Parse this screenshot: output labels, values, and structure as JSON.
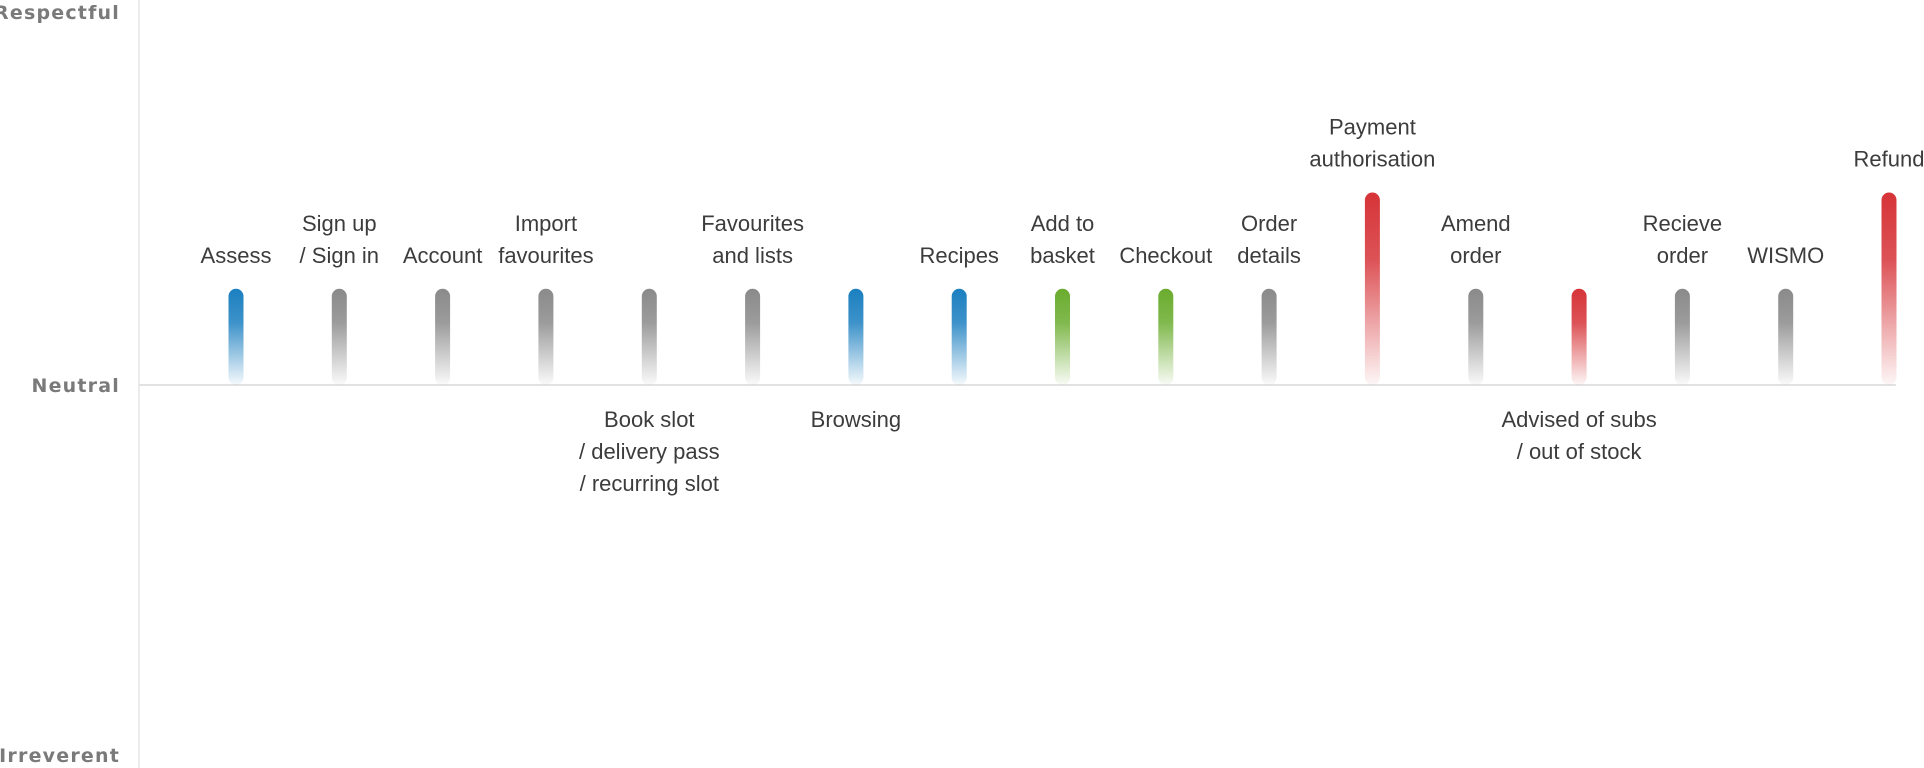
{
  "chart_data": {
    "type": "bar",
    "y_scale": {
      "top_label": "Respectful",
      "middle_label": "Neutral",
      "bottom_label": "Irreverent",
      "range": [
        -1,
        1
      ]
    },
    "grid": false,
    "legend": "none",
    "colors": {
      "blue": "#1b7fc0",
      "grey": "#8a8a8a",
      "green": "#6aac2e",
      "red": "#d63438",
      "axis": "#e2e2e2"
    },
    "categories": [
      {
        "lines": [
          "Assess"
        ],
        "value": 0.25,
        "color": "blue",
        "label_side": "above"
      },
      {
        "lines": [
          "Sign up",
          "/ Sign in"
        ],
        "value": 0.25,
        "color": "grey",
        "label_side": "above"
      },
      {
        "lines": [
          "Account"
        ],
        "value": 0.25,
        "color": "grey",
        "label_side": "above"
      },
      {
        "lines": [
          "Import",
          "favourites"
        ],
        "value": 0.25,
        "color": "grey",
        "label_side": "above"
      },
      {
        "lines": [
          "Book slot",
          "/ delivery pass",
          "/ recurring slot"
        ],
        "value": 0.25,
        "color": "grey",
        "label_side": "below"
      },
      {
        "lines": [
          "Favourites",
          "and lists"
        ],
        "value": 0.25,
        "color": "grey",
        "label_side": "above"
      },
      {
        "lines": [
          "Browsing"
        ],
        "value": 0.25,
        "color": "blue",
        "label_side": "below"
      },
      {
        "lines": [
          "Recipes"
        ],
        "value": 0.25,
        "color": "blue",
        "label_side": "above"
      },
      {
        "lines": [
          "Add to",
          "basket"
        ],
        "value": 0.25,
        "color": "green",
        "label_side": "above"
      },
      {
        "lines": [
          "Checkout"
        ],
        "value": 0.25,
        "color": "green",
        "label_side": "above"
      },
      {
        "lines": [
          "Order",
          "details"
        ],
        "value": 0.25,
        "color": "grey",
        "label_side": "above"
      },
      {
        "lines": [
          "Payment",
          "authorisation"
        ],
        "value": 0.5,
        "color": "red",
        "label_side": "above"
      },
      {
        "lines": [
          "Amend",
          "order"
        ],
        "value": 0.25,
        "color": "grey",
        "label_side": "above"
      },
      {
        "lines": [
          "Advised of subs",
          "/ out of stock"
        ],
        "value": 0.25,
        "color": "red",
        "label_side": "below"
      },
      {
        "lines": [
          "Recieve",
          "order"
        ],
        "value": 0.25,
        "color": "grey",
        "label_side": "above"
      },
      {
        "lines": [
          "WISMO"
        ],
        "value": 0.25,
        "color": "grey",
        "label_side": "above"
      },
      {
        "lines": [
          "Refund"
        ],
        "value": 0.5,
        "color": "red",
        "label_side": "above"
      }
    ]
  }
}
